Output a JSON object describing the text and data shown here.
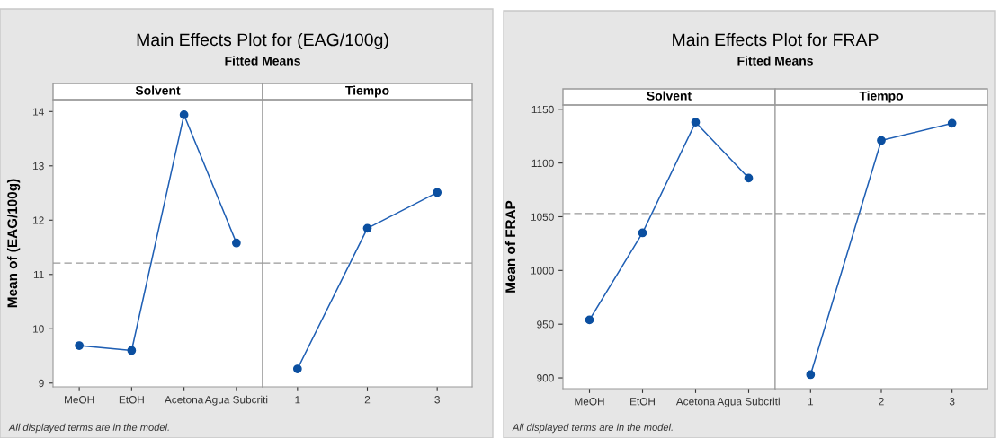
{
  "chart_data": [
    {
      "type": "line",
      "title": "Main Effects Plot for (EAG/100g)",
      "subtitle": "Fitted Means",
      "ylabel": "Mean of (EAG/100g)",
      "xlabel": "Solvent",
      "annotations": [
        "All displayed terms are in the model."
      ],
      "categories": [
        "MeOH",
        "EtOH",
        "Acetona",
        "Agua Subcriti"
      ],
      "series": [
        {
          "color": "#1f5fb4",
          "values": [
            9.69,
            9.6,
            13.94,
            11.58
          ]
        }
      ],
      "ylim": [
        8.93,
        14.22
      ],
      "yticks": [
        9,
        10,
        11,
        12,
        13,
        14
      ],
      "ref_lines": [
        {
          "axis": "y",
          "value": 11.21,
          "color": "#999999",
          "line_style": "dashed"
        }
      ],
      "marker": "circle",
      "grid": false
    },
    {
      "type": "line",
      "xlabel": "Tiempo",
      "categories": [
        "1",
        "2",
        "3"
      ],
      "series": [
        {
          "color": "#1f5fb4",
          "values": [
            9.26,
            11.85,
            12.51
          ]
        }
      ],
      "ylim": [
        8.93,
        14.22
      ],
      "tick_labels": "x",
      "ref_lines": [
        {
          "axis": "y",
          "value": 11.21,
          "color": "#999999",
          "line_style": "dashed"
        }
      ],
      "marker": "circle",
      "grid": false
    },
    {
      "type": "line",
      "title": "Main Effects Plot for FRAP",
      "subtitle": "Fitted Means",
      "ylabel": "Mean of FRAP",
      "xlabel": "Solvent",
      "annotations": [
        "All displayed terms are in the model."
      ],
      "categories": [
        "MeOH",
        "EtOH",
        "Acetona",
        "Agua Subcriti"
      ],
      "series": [
        {
          "color": "#1f5fb4",
          "values": [
            954,
            1035,
            1138,
            1086
          ]
        }
      ],
      "ylim": [
        890,
        1154
      ],
      "yticks": [
        900,
        950,
        1000,
        1050,
        1100,
        1150
      ],
      "ref_lines": [
        {
          "axis": "y",
          "value": 1053,
          "color": "#999999",
          "line_style": "dashed"
        }
      ],
      "marker": "circle",
      "grid": false
    },
    {
      "type": "line",
      "xlabel": "Tiempo",
      "categories": [
        "1",
        "2",
        "3"
      ],
      "series": [
        {
          "color": "#1f5fb4",
          "values": [
            903,
            1121,
            1137
          ]
        }
      ],
      "ylim": [
        890,
        1154
      ],
      "tick_labels": "x",
      "ref_lines": [
        {
          "axis": "y",
          "value": 1053,
          "color": "#999999",
          "line_style": "dashed"
        }
      ],
      "marker": "circle",
      "grid": false
    }
  ]
}
